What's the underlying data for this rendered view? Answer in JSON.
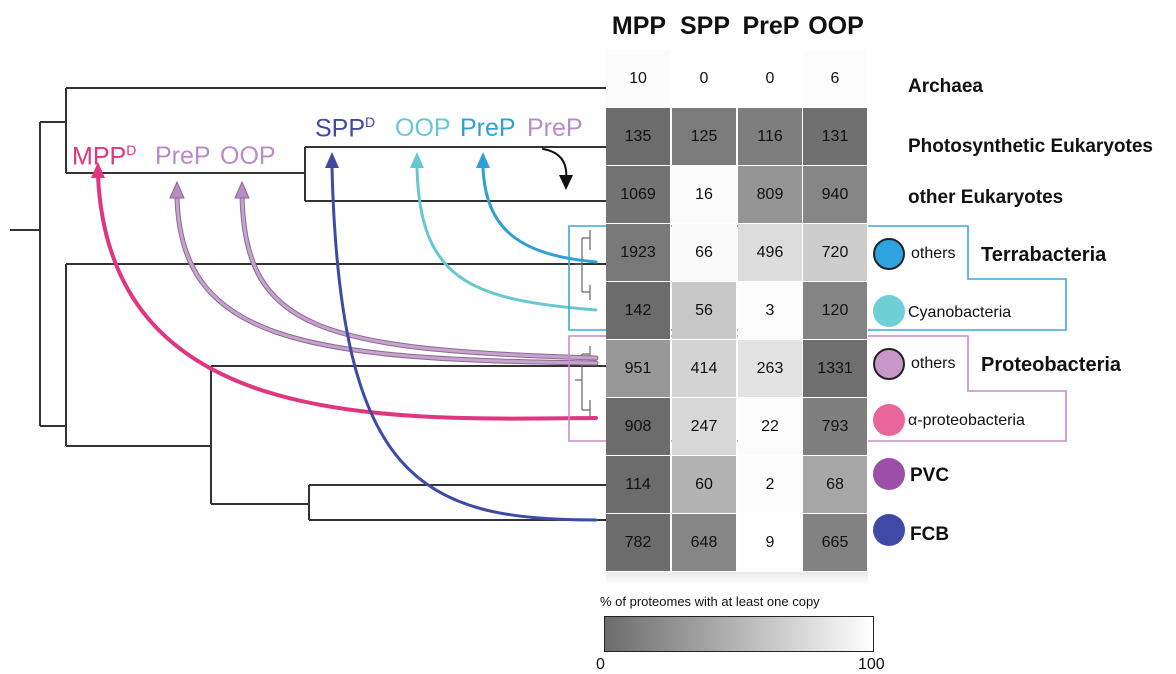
{
  "columns": [
    "MPP",
    "SPP",
    "PreP",
    "OOP"
  ],
  "rows": [
    {
      "label": "Archaea",
      "sub": "",
      "values": [
        10,
        0,
        0,
        6
      ],
      "pct": [
        3,
        0,
        0,
        2
      ]
    },
    {
      "label": "Photosynthetic Eukaryotes",
      "sub": "",
      "values": [
        135,
        125,
        116,
        131
      ],
      "pct": [
        100,
        90,
        88,
        97
      ]
    },
    {
      "label": "other Eukaryotes",
      "sub": "",
      "values": [
        1069,
        16,
        809,
        940
      ],
      "pct": [
        95,
        3,
        72,
        82
      ]
    },
    {
      "label": "",
      "sub": "others",
      "values": [
        1923,
        66,
        496,
        720
      ],
      "pct": [
        92,
        4,
        24,
        34
      ]
    },
    {
      "label": "",
      "sub": "Cyanobacteria",
      "values": [
        142,
        56,
        3,
        120
      ],
      "pct": [
        100,
        38,
        2,
        84
      ]
    },
    {
      "label": "",
      "sub": "others",
      "values": [
        951,
        414,
        263,
        1331
      ],
      "pct": [
        70,
        30,
        19,
        98
      ]
    },
    {
      "label": "",
      "sub": "α-proteobacteria",
      "values": [
        908,
        247,
        22,
        793
      ],
      "pct": [
        100,
        27,
        2,
        87
      ]
    },
    {
      "label": "PVC",
      "sub": "",
      "values": [
        114,
        60,
        2,
        68
      ],
      "pct": [
        100,
        52,
        2,
        60
      ]
    },
    {
      "label": "FCB",
      "sub": "",
      "values": [
        782,
        648,
        9,
        665
      ],
      "pct": [
        100,
        82,
        1,
        85
      ]
    }
  ],
  "groups": {
    "terrabacteria": "Terrabacteria",
    "proteobacteria": "Proteobacteria"
  },
  "arrow_labels": {
    "mpp": "MPP",
    "mpp_sup": "D",
    "prep_left": "PreP",
    "oop_left": "OOP",
    "spp": "SPP",
    "spp_sup": "D",
    "oop_right": "OOP",
    "prep_mid": "PreP",
    "prep_right": "PreP"
  },
  "legend": {
    "title": "% of proteomes with at least one copy",
    "min": "0",
    "max": "100"
  },
  "colors": {
    "mpp": "#e0357f",
    "prep": "#b98bc7",
    "oop": "#b98bc7",
    "spp": "#3f4aa5",
    "oop_right": "#67c8d2",
    "prep_mid": "#2f9fd8",
    "cyano": "#6fcfd6",
    "terra_others": "#2fa3df",
    "proteo_others": "#c897c7",
    "alpha": "#e9669d",
    "pvc": "#9b4fa6",
    "fcb": "#3e4aa6",
    "terra_box": "#3aa9d7",
    "proteo_box": "#c98bc5"
  }
}
